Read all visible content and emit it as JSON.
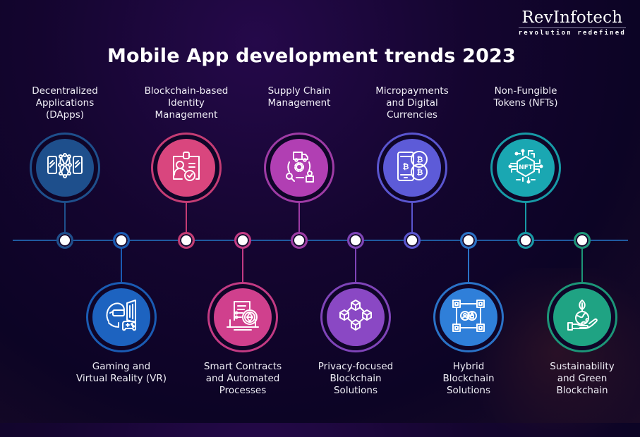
{
  "brand": {
    "name": "RevInfotech",
    "tagline": "revolution redefined"
  },
  "title": "Mobile App development trends 2023",
  "timeline_color": "#1f5aa0",
  "top_items": [
    {
      "label_lines": [
        "Decentralized",
        "Applications",
        "(DApps)"
      ],
      "label": "Decentralized Applications (DApps)",
      "icon": "dapps-network-icon",
      "color": "#1e4f8c",
      "ring": "#1e4f8c"
    },
    {
      "label_lines": [
        "Blockchain-based",
        "Identity",
        "Management"
      ],
      "label": "Blockchain-based Identity Management",
      "icon": "id-card-check-icon",
      "color": "#d9467e",
      "ring": "#c43c74"
    },
    {
      "label_lines": [
        "Supply Chain",
        "Management"
      ],
      "label": "Supply Chain Management",
      "icon": "supply-chain-icon",
      "color": "#b13fb3",
      "ring": "#9e3ba5"
    },
    {
      "label_lines": [
        "Micropayments",
        "and Digital",
        "Currencies"
      ],
      "label": "Micropayments and Digital Currencies",
      "icon": "bitcoin-phone-icon",
      "color": "#5d5bd8",
      "ring": "#5a55cf"
    },
    {
      "label_lines": [
        "Non-Fungible",
        "Tokens (NFTs)"
      ],
      "label": "Non-Fungible Tokens (NFTs)",
      "icon": "nft-chip-icon",
      "color": "#1aa7b2",
      "ring": "#179aa6"
    }
  ],
  "bottom_items": [
    {
      "label_lines": [
        "Gaming and",
        "Virtual Reality (VR)"
      ],
      "label": "Gaming and Virtual Reality (VR)",
      "icon": "vr-gaming-icon",
      "color": "#1d63c0",
      "ring": "#1a5bb3"
    },
    {
      "label_lines": [
        "Smart Contracts",
        "and Automated",
        "Processes"
      ],
      "label": "Smart Contracts and Automated Processes",
      "icon": "smart-contract-icon",
      "color": "#d0408d",
      "ring": "#c23a83"
    },
    {
      "label_lines": [
        "Privacy-focused",
        "Blockchain",
        "Solutions"
      ],
      "label": "Privacy-focused Blockchain Solutions",
      "icon": "blockchain-cubes-icon",
      "color": "#8a48c4",
      "ring": "#7f44b8"
    },
    {
      "label_lines": [
        "Hybrid",
        "Blockchain",
        "Solutions"
      ],
      "label": "Hybrid Blockchain Solutions",
      "icon": "hybrid-blockchain-icon",
      "color": "#2f7fd9",
      "ring": "#2a72c7"
    },
    {
      "label_lines": [
        "Sustainability",
        "and Green",
        "Blockchain"
      ],
      "label": "Sustainability and Green Blockchain",
      "icon": "green-earth-hand-icon",
      "color": "#1fa383",
      "ring": "#1c9678"
    }
  ]
}
